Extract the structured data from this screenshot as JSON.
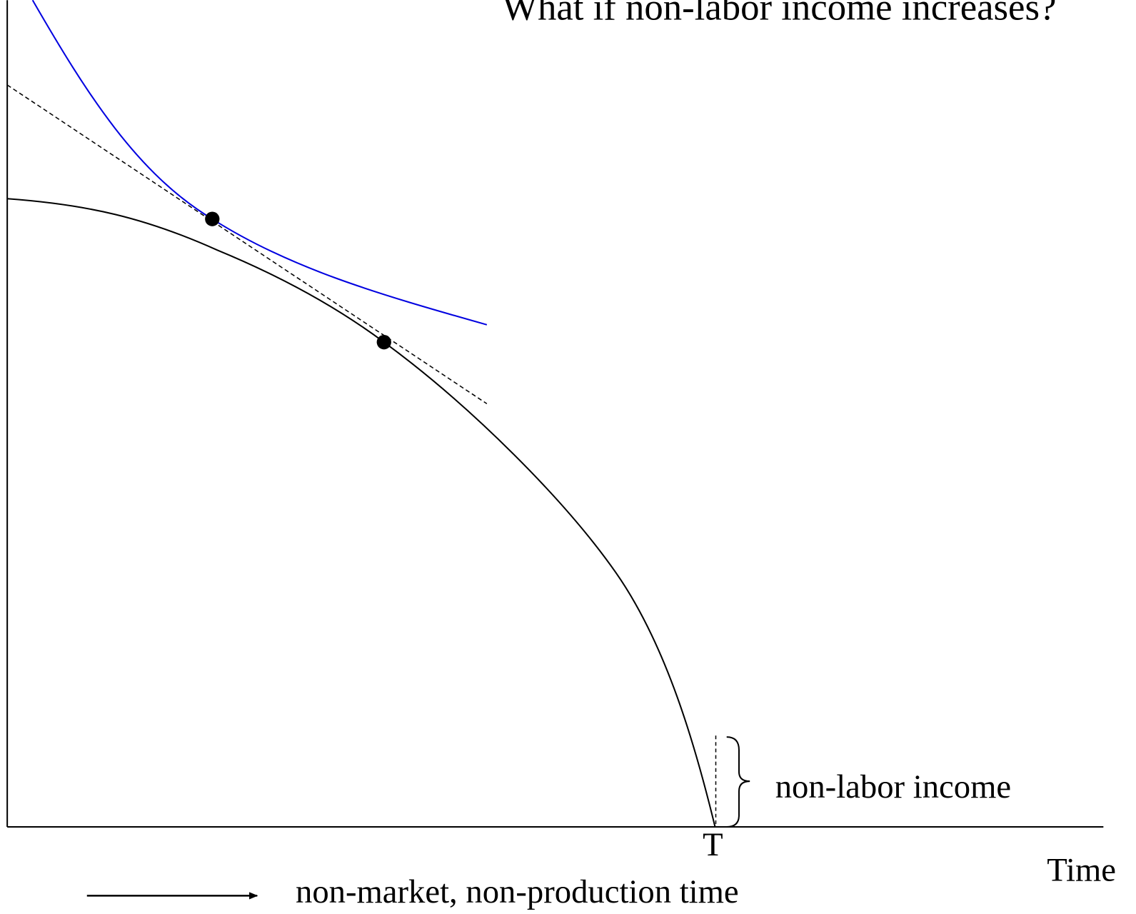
{
  "title": "What if non-labor income increases?",
  "labels": {
    "non_labor_income": "non-labor income",
    "t_mark": "T",
    "time_axis": "Time",
    "arrow_note": "non-market, non-production time"
  }
}
